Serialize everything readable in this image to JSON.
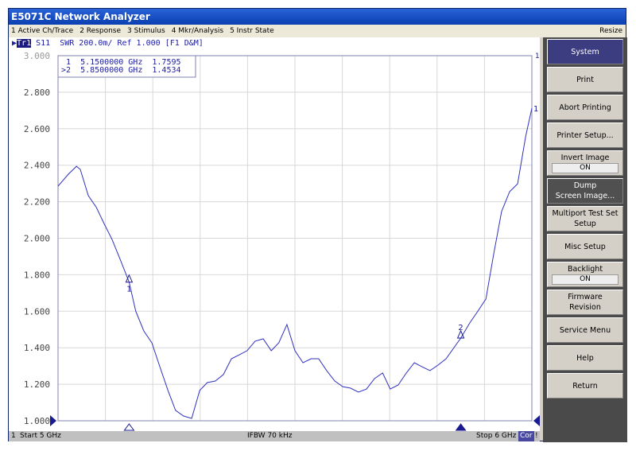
{
  "window": {
    "title": "E5071C Network Analyzer"
  },
  "menu": {
    "items": [
      "1 Active Ch/Trace",
      "2 Response",
      "3 Stimulus",
      "4 Mkr/Analysis",
      "5 Instr State"
    ],
    "resize": "Resize"
  },
  "trace_header": {
    "trace": "Tr1",
    "text": " S11  SWR 200.0m/ Ref 1.000 [F1 D&M]"
  },
  "markers": {
    "line1": " 1  5.1500000 GHz  1.7595",
    "line2": ">2  5.8500000 GHz  1.4534"
  },
  "status": {
    "channel": "1",
    "start": "Start 5 GHz",
    "ifbw": "IFBW 70 kHz",
    "stop": "Stop 6 GHz",
    "cor": "Cor",
    "excl": "!"
  },
  "softkeys": {
    "title": "System",
    "print": "Print",
    "abort": "Abort Printing",
    "printer_setup": "Printer Setup...",
    "invert_label": "Invert Image",
    "invert_value": "ON",
    "dump1": "Dump",
    "dump2": "Screen Image...",
    "multiport1": "Multiport Test Set",
    "multiport2": "Setup",
    "misc": "Misc Setup",
    "backlight_label": "Backlight",
    "backlight_value": "ON",
    "firmware1": "Firmware",
    "firmware2": "Revision",
    "service": "Service Menu",
    "help": "Help",
    "return": "Return"
  },
  "colors": {
    "trace": "#3030c0",
    "marker": "#1a1a90",
    "grid": "#d8d8d8"
  },
  "chart_data": {
    "type": "line",
    "xlim": [
      5.0,
      6.0
    ],
    "ylim": [
      1.0,
      3.0
    ],
    "grid": true,
    "ytick_labels": [
      "3.000",
      "2.800",
      "2.600",
      "2.400",
      "2.200",
      "2.000",
      "1.800",
      "1.600",
      "1.400",
      "1.200",
      "1.000"
    ],
    "series": [
      {
        "x": [
          5.0,
          5.022,
          5.039,
          5.047,
          5.064,
          5.081,
          5.097,
          5.114,
          5.131,
          5.15,
          5.164,
          5.181,
          5.198,
          5.215,
          5.232,
          5.248,
          5.265,
          5.282,
          5.299,
          5.315,
          5.332,
          5.349,
          5.366,
          5.383,
          5.399,
          5.416,
          5.433,
          5.45,
          5.466,
          5.483,
          5.5,
          5.517,
          5.534,
          5.55,
          5.567,
          5.584,
          5.601,
          5.617,
          5.634,
          5.651,
          5.668,
          5.685,
          5.701,
          5.718,
          5.735,
          5.752,
          5.768,
          5.785,
          5.802,
          5.819,
          5.85,
          5.869,
          5.886,
          5.903,
          5.919,
          5.936,
          5.953,
          5.97,
          5.987,
          6.0
        ],
        "y": [
          2.285,
          2.351,
          2.394,
          2.377,
          2.233,
          2.168,
          2.081,
          1.994,
          1.885,
          1.76,
          1.601,
          1.492,
          1.427,
          1.296,
          1.166,
          1.057,
          1.026,
          1.013,
          1.166,
          1.209,
          1.218,
          1.253,
          1.34,
          1.362,
          1.384,
          1.436,
          1.449,
          1.384,
          1.427,
          1.527,
          1.384,
          1.318,
          1.34,
          1.34,
          1.275,
          1.218,
          1.187,
          1.179,
          1.157,
          1.174,
          1.231,
          1.262,
          1.174,
          1.196,
          1.262,
          1.318,
          1.296,
          1.275,
          1.305,
          1.34,
          1.453,
          1.536,
          1.601,
          1.667,
          1.906,
          2.146,
          2.255,
          2.298,
          2.56,
          2.712
        ]
      }
    ],
    "markers": [
      {
        "label": "1",
        "x": 5.15,
        "y": 1.7595
      },
      {
        "label": "2",
        "x": 5.85,
        "y": 1.4534
      }
    ]
  }
}
